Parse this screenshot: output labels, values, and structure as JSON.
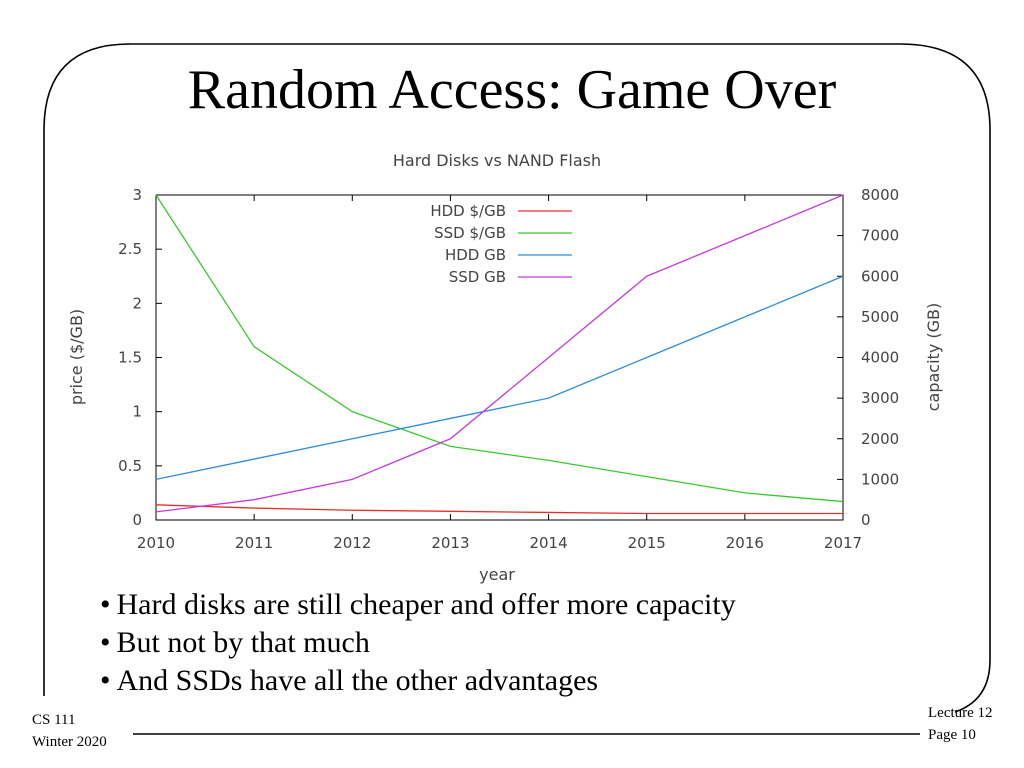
{
  "slide": {
    "title": "Random Access: Game Over",
    "bullets": [
      "Hard disks are still cheaper and offer more capacity",
      "But not by that much",
      "And SSDs have all the other advantages"
    ]
  },
  "footer": {
    "course": "CS 111",
    "term": "Winter 2020",
    "lecture": "Lecture 12",
    "page": "Page 10"
  },
  "chart_data": {
    "type": "line",
    "title": "Hard Disks vs NAND Flash",
    "xlabel": "year",
    "ylabel": "price ($/GB)",
    "y2label": "capacity (GB)",
    "x": [
      2010,
      2011,
      2012,
      2013,
      2014,
      2015,
      2016,
      2017
    ],
    "x_ticks": [
      "2010",
      "2011",
      "2012",
      "2013",
      "2014",
      "2015",
      "2016",
      "2017"
    ],
    "xlim": [
      2010,
      2017
    ],
    "ylim": [
      0,
      3
    ],
    "y_ticks": [
      "0",
      "0.5",
      "1",
      "1.5",
      "2",
      "2.5",
      "3"
    ],
    "y2lim": [
      0,
      8000
    ],
    "y2_ticks": [
      "0",
      "1000",
      "2000",
      "3000",
      "4000",
      "5000",
      "6000",
      "7000",
      "8000"
    ],
    "legend_position": "top-right",
    "grid": false,
    "series": [
      {
        "name": "HDD $/GB",
        "axis": "left",
        "color": "#e8302a",
        "values": [
          0.14,
          0.11,
          0.09,
          0.08,
          0.07,
          0.06,
          0.06,
          0.06
        ]
      },
      {
        "name": "SSD $/GB",
        "axis": "left",
        "color": "#39c92f",
        "values": [
          3.0,
          1.6,
          1.0,
          0.68,
          0.55,
          0.4,
          0.25,
          0.17
        ]
      },
      {
        "name": "HDD GB",
        "axis": "right",
        "color": "#2e8fd8",
        "values": [
          1000,
          1500,
          2000,
          2500,
          3000,
          4000,
          5000,
          6000
        ]
      },
      {
        "name": "SSD GB",
        "axis": "right",
        "color": "#c63bde",
        "values": [
          200,
          500,
          1000,
          2000,
          4000,
          6000,
          7000,
          8000
        ]
      }
    ]
  }
}
